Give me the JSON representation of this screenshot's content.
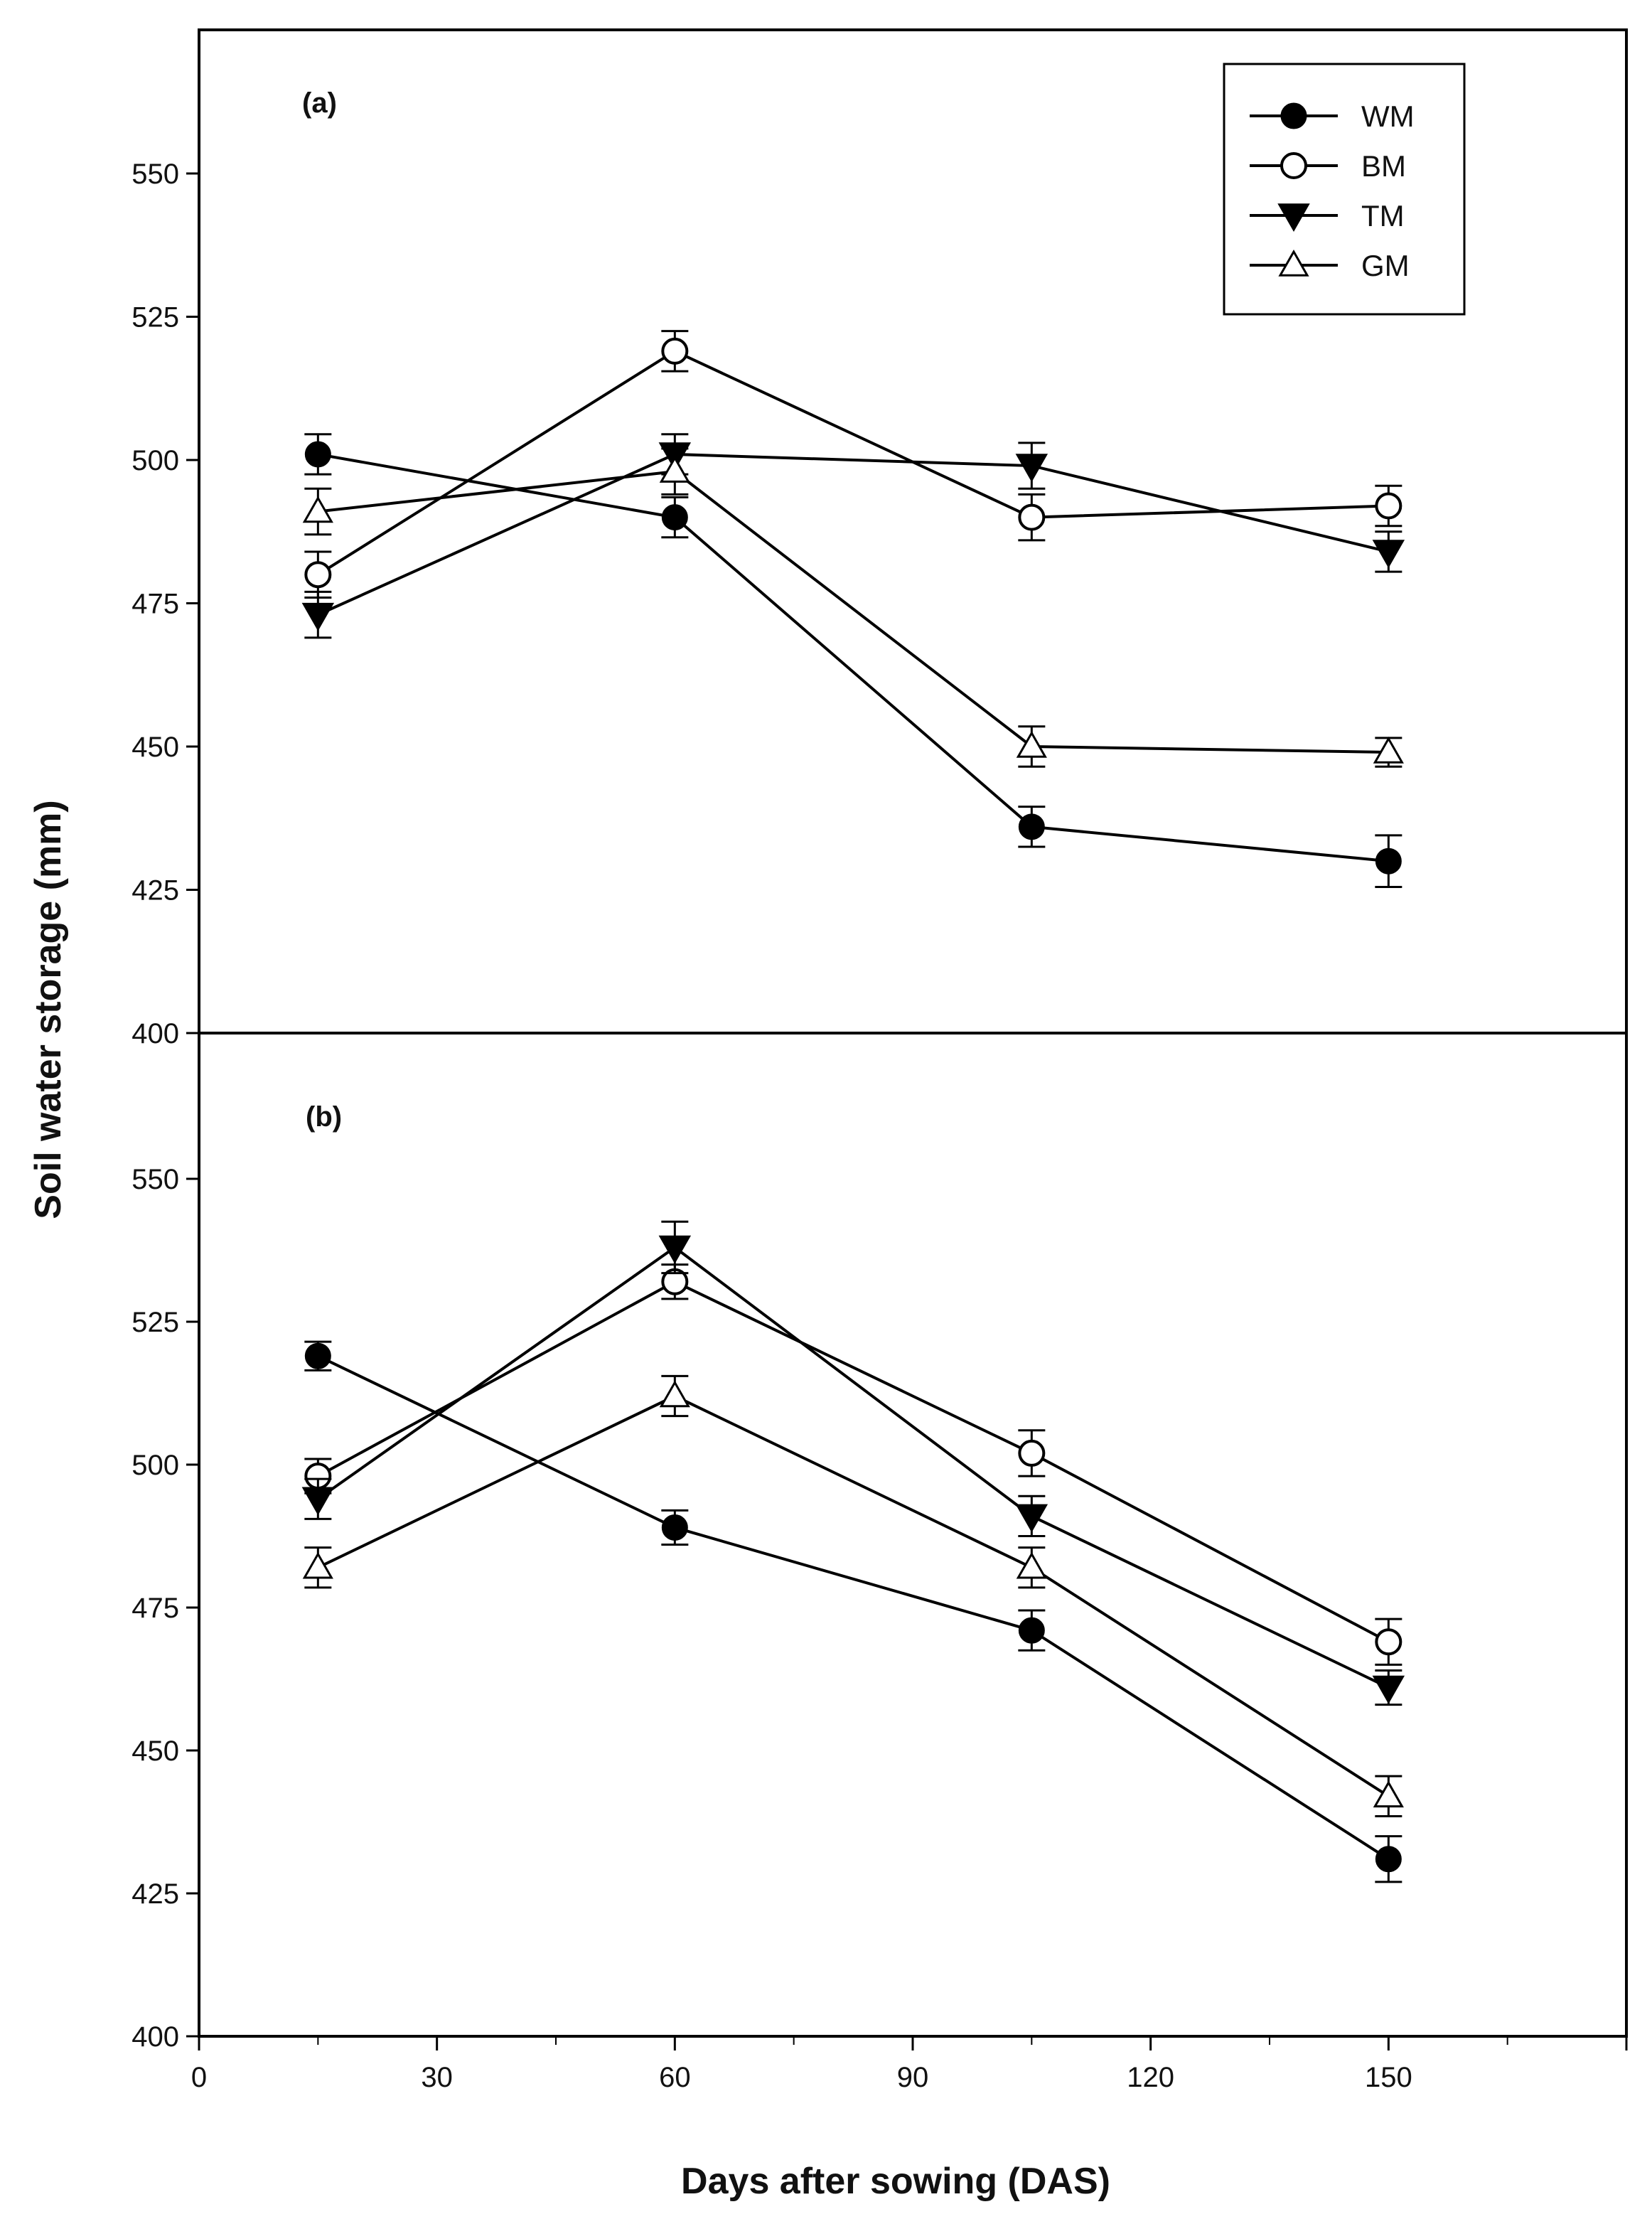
{
  "chart_data": {
    "type": "line",
    "figure": {
      "ylabel": "Soil water storage (mm)",
      "xlabel": "Days after sowing (DAS)",
      "x_ticks": [
        0,
        30,
        60,
        90,
        120,
        150
      ],
      "y_ticks": [
        400,
        425,
        450,
        475,
        500,
        525,
        550
      ],
      "xlim": [
        0,
        180
      ],
      "ylim": [
        400,
        575
      ]
    },
    "legend": {
      "position": "top-right",
      "entries": [
        {
          "name": "WM",
          "marker": "filled-circle"
        },
        {
          "name": "BM",
          "marker": "open-circle"
        },
        {
          "name": "TM",
          "marker": "filled-triangle-down"
        },
        {
          "name": "GM",
          "marker": "open-triangle-up"
        }
      ]
    },
    "panels": [
      {
        "label": "(a)",
        "x": [
          15,
          60,
          105,
          150
        ],
        "series": [
          {
            "name": "WM",
            "values": [
              501,
              490,
              436,
              430
            ],
            "errors": [
              3.5,
              3.5,
              3.5,
              4.5
            ]
          },
          {
            "name": "BM",
            "values": [
              480,
              519,
              490,
              492
            ],
            "errors": [
              4,
              3.5,
              4,
              3.5
            ]
          },
          {
            "name": "TM",
            "values": [
              473,
              501,
              499,
              484
            ],
            "errors": [
              4,
              3.5,
              4,
              3.5
            ]
          },
          {
            "name": "GM",
            "values": [
              491,
              498,
              450,
              449
            ],
            "errors": [
              4,
              4,
              3.5,
              2.5
            ]
          }
        ]
      },
      {
        "label": "(b)",
        "x": [
          15,
          60,
          105,
          150
        ],
        "series": [
          {
            "name": "WM",
            "values": [
              519,
              489,
              471,
              431
            ],
            "errors": [
              2.5,
              3,
              3.5,
              4
            ]
          },
          {
            "name": "BM",
            "values": [
              498,
              532,
              502,
              469
            ],
            "errors": [
              3,
              3,
              4,
              4
            ]
          },
          {
            "name": "TM",
            "values": [
              494,
              538,
              491,
              461
            ],
            "errors": [
              3.5,
              4.5,
              3.5,
              3
            ]
          },
          {
            "name": "GM",
            "values": [
              482,
              512,
              482,
              442
            ],
            "errors": [
              3.5,
              3.5,
              3.5,
              3.5
            ]
          }
        ]
      }
    ]
  }
}
